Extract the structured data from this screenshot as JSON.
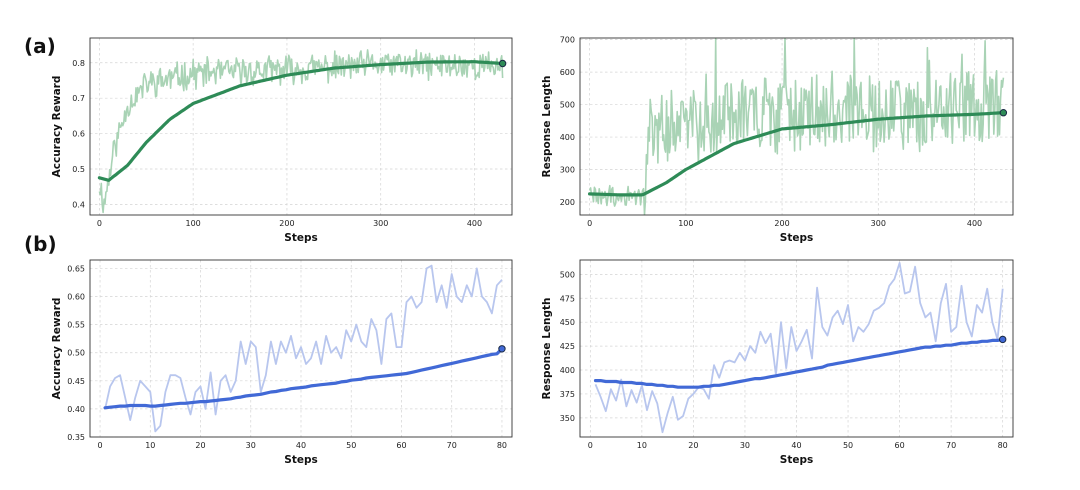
{
  "labels": {
    "a": "(a)",
    "b": "(b)"
  },
  "colors": {
    "green_raw": "#a9d3b5",
    "green_smooth": "#2e8b57",
    "blue_raw": "#b8c6ee",
    "blue_smooth": "#4169d6"
  },
  "chart_data": [
    {
      "type": "line",
      "xlabel": "Steps",
      "ylabel": "Accuracy Reward",
      "xlim": [
        -10,
        440
      ],
      "ylim": [
        0.37,
        0.87
      ],
      "xticks": [
        0,
        100,
        200,
        300,
        400
      ],
      "yticks": [
        0.4,
        0.5,
        0.6,
        0.7,
        0.8
      ],
      "tick_decimals": 1,
      "grid": true,
      "noise_seed": 11,
      "raw_noise": 0.035,
      "raw_jagged": 0.012,
      "raw_trend": [
        [
          0,
          0.46
        ],
        [
          5,
          0.4
        ],
        [
          15,
          0.55
        ],
        [
          30,
          0.68
        ],
        [
          50,
          0.74
        ],
        [
          100,
          0.77
        ],
        [
          200,
          0.78
        ],
        [
          300,
          0.795
        ],
        [
          430,
          0.79
        ]
      ],
      "smooth_trend": [
        [
          0,
          0.475
        ],
        [
          10,
          0.468
        ],
        [
          30,
          0.51
        ],
        [
          50,
          0.575
        ],
        [
          75,
          0.64
        ],
        [
          100,
          0.685
        ],
        [
          150,
          0.735
        ],
        [
          200,
          0.765
        ],
        [
          250,
          0.785
        ],
        [
          300,
          0.795
        ],
        [
          350,
          0.802
        ],
        [
          400,
          0.803
        ],
        [
          430,
          0.798
        ]
      ],
      "last_point": [
        430,
        0.798
      ],
      "raw_color": "#a9d3b5",
      "smooth_color": "#2e8b57"
    },
    {
      "type": "line",
      "xlabel": "Steps",
      "ylabel": "Response Length",
      "xlim": [
        -10,
        440
      ],
      "ylim": [
        160,
        705
      ],
      "xticks": [
        0,
        100,
        200,
        300,
        400
      ],
      "yticks": [
        200,
        300,
        400,
        500,
        600,
        700
      ],
      "tick_decimals": 0,
      "grid": true,
      "noise_seed": 29,
      "raw_noise": 110,
      "raw_jagged": 25,
      "raw_trend": [
        [
          0,
          225
        ],
        [
          30,
          210
        ],
        [
          55,
          220
        ],
        [
          62,
          420
        ],
        [
          100,
          440
        ],
        [
          150,
          460
        ],
        [
          200,
          470
        ],
        [
          300,
          480
        ],
        [
          430,
          485
        ]
      ],
      "smooth_trend": [
        [
          0,
          225
        ],
        [
          30,
          222
        ],
        [
          55,
          222
        ],
        [
          80,
          260
        ],
        [
          100,
          300
        ],
        [
          150,
          380
        ],
        [
          200,
          425
        ],
        [
          250,
          438
        ],
        [
          300,
          455
        ],
        [
          350,
          465
        ],
        [
          400,
          470
        ],
        [
          430,
          475
        ]
      ],
      "last_point": [
        430,
        475
      ],
      "raw_color": "#a9d3b5",
      "smooth_color": "#2e8b57"
    },
    {
      "type": "line",
      "xlabel": "Steps",
      "ylabel": "Accuracy Reward",
      "xlim": [
        -2,
        82
      ],
      "ylim": [
        0.35,
        0.665
      ],
      "xticks": [
        0,
        10,
        20,
        30,
        40,
        50,
        60,
        70,
        80
      ],
      "yticks": [
        0.35,
        0.4,
        0.45,
        0.5,
        0.55,
        0.6,
        0.65
      ],
      "tick_decimals": 2,
      "grid": true,
      "x": [
        1,
        2,
        3,
        4,
        5,
        6,
        7,
        8,
        9,
        10,
        11,
        12,
        13,
        14,
        15,
        16,
        17,
        18,
        19,
        20,
        21,
        22,
        23,
        24,
        25,
        26,
        27,
        28,
        29,
        30,
        31,
        32,
        33,
        34,
        35,
        36,
        37,
        38,
        39,
        40,
        41,
        42,
        43,
        44,
        45,
        46,
        47,
        48,
        49,
        50,
        51,
        52,
        53,
        54,
        55,
        56,
        57,
        58,
        59,
        60,
        61,
        62,
        63,
        64,
        65,
        66,
        67,
        68,
        69,
        70,
        71,
        72,
        73,
        74,
        75,
        76,
        77,
        78,
        79,
        80
      ],
      "raw": [
        0.4,
        0.44,
        0.455,
        0.46,
        0.42,
        0.38,
        0.42,
        0.45,
        0.44,
        0.43,
        0.36,
        0.37,
        0.43,
        0.46,
        0.46,
        0.455,
        0.42,
        0.39,
        0.43,
        0.44,
        0.4,
        0.465,
        0.39,
        0.45,
        0.46,
        0.43,
        0.45,
        0.52,
        0.48,
        0.52,
        0.51,
        0.43,
        0.46,
        0.52,
        0.48,
        0.52,
        0.5,
        0.53,
        0.49,
        0.51,
        0.48,
        0.49,
        0.52,
        0.48,
        0.53,
        0.5,
        0.51,
        0.49,
        0.54,
        0.52,
        0.55,
        0.52,
        0.51,
        0.56,
        0.54,
        0.48,
        0.56,
        0.57,
        0.51,
        0.51,
        0.59,
        0.6,
        0.58,
        0.59,
        0.65,
        0.655,
        0.59,
        0.62,
        0.58,
        0.64,
        0.6,
        0.59,
        0.62,
        0.6,
        0.65,
        0.6,
        0.59,
        0.57,
        0.62,
        0.63
      ],
      "smooth": [
        0.402,
        0.403,
        0.404,
        0.405,
        0.405,
        0.406,
        0.406,
        0.406,
        0.406,
        0.405,
        0.405,
        0.406,
        0.407,
        0.408,
        0.409,
        0.41,
        0.41,
        0.411,
        0.412,
        0.413,
        0.413,
        0.414,
        0.415,
        0.416,
        0.417,
        0.418,
        0.42,
        0.421,
        0.423,
        0.424,
        0.425,
        0.426,
        0.428,
        0.43,
        0.431,
        0.433,
        0.434,
        0.436,
        0.437,
        0.438,
        0.439,
        0.441,
        0.442,
        0.443,
        0.444,
        0.445,
        0.446,
        0.448,
        0.449,
        0.451,
        0.452,
        0.453,
        0.455,
        0.456,
        0.457,
        0.458,
        0.459,
        0.46,
        0.461,
        0.462,
        0.463,
        0.465,
        0.467,
        0.469,
        0.471,
        0.473,
        0.475,
        0.477,
        0.479,
        0.481,
        0.483,
        0.485,
        0.487,
        0.489,
        0.491,
        0.493,
        0.495,
        0.497,
        0.498,
        0.507
      ],
      "raw_color": "#b8c6ee",
      "smooth_color": "#4169d6"
    },
    {
      "type": "line",
      "xlabel": "Steps",
      "ylabel": "Response Length",
      "xlim": [
        -2,
        82
      ],
      "ylim": [
        330,
        515
      ],
      "xticks": [
        0,
        10,
        20,
        30,
        40,
        50,
        60,
        70,
        80
      ],
      "yticks": [
        350,
        375,
        400,
        425,
        450,
        475,
        500
      ],
      "tick_decimals": 0,
      "grid": true,
      "x": [
        1,
        2,
        3,
        4,
        5,
        6,
        7,
        8,
        9,
        10,
        11,
        12,
        13,
        14,
        15,
        16,
        17,
        18,
        19,
        20,
        21,
        22,
        23,
        24,
        25,
        26,
        27,
        28,
        29,
        30,
        31,
        32,
        33,
        34,
        35,
        36,
        37,
        38,
        39,
        40,
        41,
        42,
        43,
        44,
        45,
        46,
        47,
        48,
        49,
        50,
        51,
        52,
        53,
        54,
        55,
        56,
        57,
        58,
        59,
        60,
        61,
        62,
        63,
        64,
        65,
        66,
        67,
        68,
        69,
        70,
        71,
        72,
        73,
        74,
        75,
        76,
        77,
        78,
        79,
        80
      ],
      "raw": [
        385,
        372,
        357,
        380,
        368,
        390,
        362,
        379,
        366,
        384,
        358,
        378,
        365,
        335,
        355,
        372,
        348,
        352,
        370,
        375,
        382,
        380,
        370,
        405,
        392,
        408,
        410,
        408,
        418,
        410,
        425,
        418,
        440,
        428,
        438,
        395,
        450,
        402,
        445,
        420,
        430,
        442,
        412,
        486,
        445,
        436,
        455,
        462,
        448,
        468,
        430,
        445,
        440,
        448,
        462,
        465,
        470,
        488,
        495,
        512,
        480,
        482,
        508,
        470,
        455,
        460,
        430,
        470,
        490,
        440,
        445,
        488,
        450,
        435,
        468,
        460,
        485,
        450,
        432,
        485
      ],
      "smooth": [
        389,
        389,
        388,
        388,
        388,
        387,
        387,
        387,
        386,
        386,
        385,
        385,
        384,
        384,
        383,
        383,
        382,
        382,
        382,
        382,
        382,
        383,
        383,
        384,
        384,
        385,
        386,
        387,
        388,
        389,
        390,
        391,
        391,
        392,
        393,
        394,
        395,
        396,
        397,
        398,
        399,
        400,
        401,
        402,
        403,
        405,
        406,
        407,
        408,
        409,
        410,
        411,
        412,
        413,
        414,
        415,
        416,
        417,
        418,
        419,
        420,
        421,
        422,
        423,
        424,
        424,
        425,
        425,
        426,
        426,
        427,
        428,
        428,
        429,
        429,
        430,
        430,
        431,
        431,
        432
      ],
      "raw_color": "#b8c6ee",
      "smooth_color": "#4169d6"
    }
  ]
}
